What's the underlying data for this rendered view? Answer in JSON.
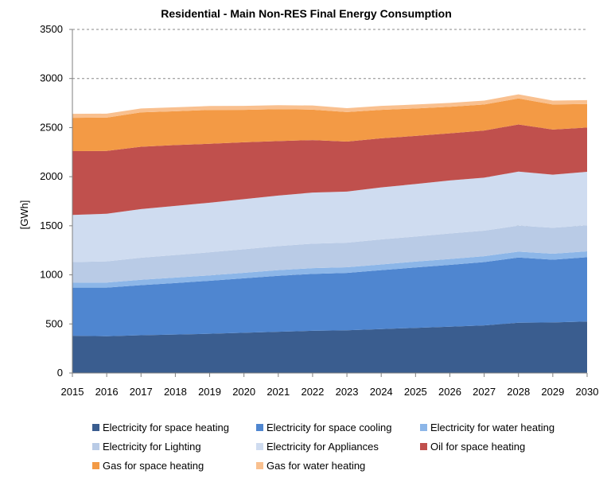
{
  "chart_data": {
    "type": "area",
    "stacked": true,
    "title": "Residential - Main Non-RES Final Energy Consumption",
    "xlabel": "",
    "ylabel": "[GWh]",
    "ylim": [
      0,
      3500
    ],
    "yticks": [
      0,
      500,
      1000,
      1500,
      2000,
      2500,
      3000,
      3500
    ],
    "grid": "horizontal dashed",
    "legend_position": "bottom",
    "x": [
      "2015",
      "2016",
      "2017",
      "2018",
      "2019",
      "2020",
      "2021",
      "2022",
      "2023",
      "2024",
      "2025",
      "2026",
      "2027",
      "2028",
      "2029",
      "2030"
    ],
    "series": [
      {
        "name": "Electricity for space heating",
        "color": "#3a5d8f",
        "values": [
          380,
          375,
          385,
          392,
          400,
          410,
          420,
          430,
          435,
          448,
          460,
          472,
          485,
          512,
          515,
          525
        ]
      },
      {
        "name": "Electricity for space cooling",
        "color": "#4f86d0",
        "values": [
          490,
          495,
          510,
          525,
          540,
          555,
          570,
          580,
          585,
          600,
          615,
          630,
          645,
          665,
          640,
          655
        ]
      },
      {
        "name": "Electricity for water heating",
        "color": "#8cb6e8",
        "values": [
          50,
          52,
          55,
          55,
          55,
          56,
          58,
          58,
          58,
          58,
          60,
          60,
          60,
          60,
          60,
          60
        ]
      },
      {
        "name": "Electricity for Lighting",
        "color": "#b9cbe6",
        "values": [
          210,
          215,
          225,
          230,
          235,
          240,
          245,
          250,
          250,
          255,
          255,
          260,
          260,
          265,
          265,
          265
        ]
      },
      {
        "name": "Electricity for Appliances",
        "color": "#cfdcf0",
        "values": [
          480,
          485,
          495,
          500,
          505,
          510,
          515,
          520,
          520,
          530,
          535,
          540,
          540,
          550,
          540,
          545
        ]
      },
      {
        "name": "Oil for space heating",
        "color": "#c0504d",
        "values": [
          650,
          640,
          635,
          620,
          600,
          580,
          555,
          535,
          510,
          500,
          490,
          480,
          480,
          480,
          460,
          450
        ]
      },
      {
        "name": "Gas for space heating",
        "color": "#f39a45",
        "values": [
          340,
          340,
          350,
          345,
          345,
          330,
          325,
          310,
          300,
          290,
          280,
          270,
          265,
          265,
          255,
          240
        ]
      },
      {
        "name": "Gas for water heating",
        "color": "#f9c08f",
        "values": [
          40,
          40,
          40,
          40,
          40,
          40,
          40,
          42,
          40,
          40,
          40,
          40,
          40,
          42,
          40,
          40
        ]
      }
    ]
  }
}
